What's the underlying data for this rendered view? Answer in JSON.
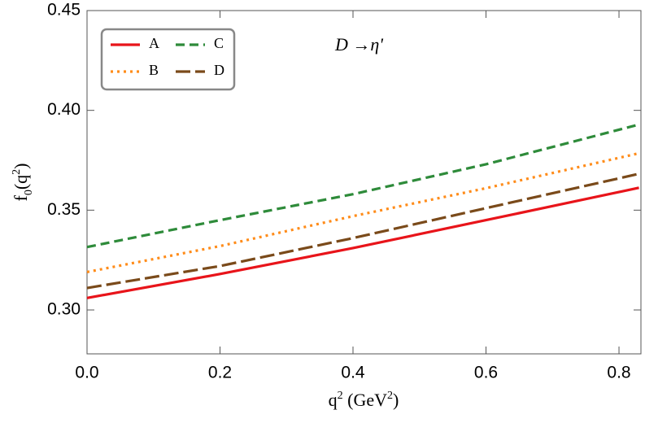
{
  "chart_data": {
    "type": "line",
    "annotation": [
      {
        "text": "D",
        "italic": true
      },
      {
        "text": " →"
      },
      {
        "text": "η'",
        "italic": true
      }
    ],
    "xlabel": [
      {
        "text": "q"
      },
      {
        "text": "2",
        "sup": true
      },
      {
        "text": " (GeV"
      },
      {
        "text": "2",
        "sup": true
      },
      {
        "text": ")"
      }
    ],
    "ylabel": [
      {
        "text": "f"
      },
      {
        "text": "0",
        "sub": true
      },
      {
        "text": "(q"
      },
      {
        "text": "2",
        "sup": true
      },
      {
        "text": ")"
      }
    ],
    "x": [
      0,
      0.2,
      0.4,
      0.6,
      0.83
    ],
    "series": [
      {
        "name": "A",
        "color": "#e8141a",
        "dash": "none",
        "values": [
          0.306,
          0.318,
          0.331,
          0.345,
          0.3612
        ]
      },
      {
        "name": "B",
        "color": "#ff8c1a",
        "dash": "3,5",
        "values": [
          0.319,
          0.332,
          0.347,
          0.361,
          0.3785
        ]
      },
      {
        "name": "C",
        "color": "#2e8b3a",
        "dash": "11,6",
        "values": [
          0.3315,
          0.345,
          0.358,
          0.373,
          0.3929
        ]
      },
      {
        "name": "D",
        "color": "#7a4a1a",
        "dash": "18,6",
        "values": [
          0.311,
          0.322,
          0.336,
          0.351,
          0.3682
        ]
      }
    ],
    "xlim": [
      0,
      0.833
    ],
    "ylim": [
      0.278,
      0.45
    ],
    "xticks": [
      {
        "value": 0,
        "label": "0.0"
      },
      0.2,
      0.4,
      0.6,
      0.8
    ],
    "yticks": [
      {
        "value": 0.3,
        "label": "0.30"
      },
      {
        "value": 0.35,
        "label": "0.35"
      },
      {
        "value": 0.4,
        "label": "0.40"
      },
      {
        "value": 0.45,
        "label": "0.45"
      }
    ],
    "legend": "top-left"
  }
}
